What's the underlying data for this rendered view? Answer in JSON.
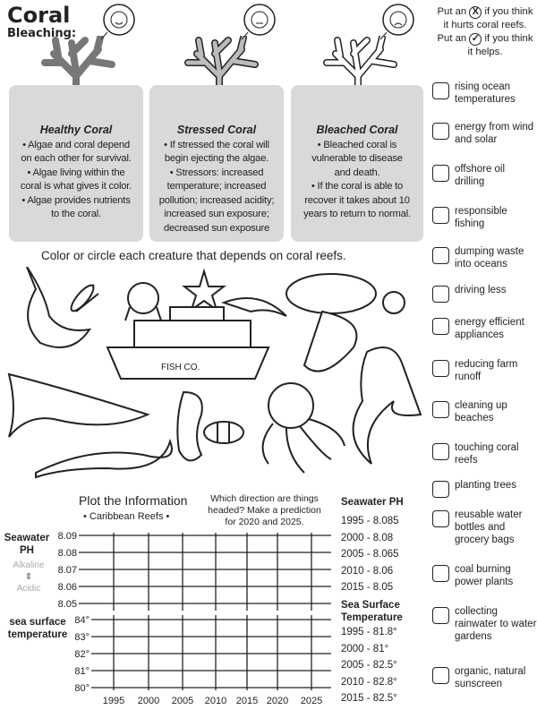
{
  "title": {
    "line1": "Coral",
    "line2": "Bleaching:"
  },
  "coral_cards": [
    {
      "heading": "Healthy Coral",
      "lines": [
        "• Algae and coral depend",
        "on each other for survival.",
        "• Algae living within the",
        "coral is what gives it color.",
        "• Algae provides nutrients",
        "to the coral."
      ]
    },
    {
      "heading": "Stressed Coral",
      "lines": [
        "• If stressed the coral will",
        "begin ejecting the algae.",
        "• Stressors: increased",
        "temperature; increased",
        "pollution; increased acidity;",
        "increased sun exposure;",
        "decreased sun exposure"
      ]
    },
    {
      "heading": "Bleached Coral",
      "lines": [
        "• Bleached coral is",
        "vulnerable to disease",
        "and death.",
        "• If the coral is able to",
        "recover it takes about 10",
        "years to return to normal."
      ]
    }
  ],
  "creatures": {
    "instruction": "Color or circle each creature that depends on coral reefs.",
    "boat_label": "FISH CO."
  },
  "checklist": {
    "intro_a": "Put an",
    "x_mark": "X",
    "intro_b": "if you think it hurts coral reefs. Put an",
    "check_mark": "✓",
    "intro_c": "if you think it helps.",
    "items": [
      "rising ocean temperatures",
      "energy from wind and solar",
      "offshore oil drilling",
      "responsible fishing",
      "dumping waste into oceans",
      "driving less",
      "energy efficient appliances",
      "reducing farm runoff",
      "cleaning up beaches",
      "touching coral reefs",
      "planting trees",
      "reusable water bottles and grocery bags",
      "coal burning power plants",
      "collecting rainwater to water gardens",
      "organic, natural sunscreen"
    ]
  },
  "plot": {
    "title": "Plot the Information",
    "subtitle": "• Caribbean Reefs •",
    "prompt": "Which direction are things headed? Make a prediction for 2020 and 2025.",
    "ph_label_1": "Seawater",
    "ph_label_2": "PH",
    "alkaline": "Alkaline",
    "acidic": "Acidic",
    "temp_label_1": "sea surface",
    "temp_label_2": "temperature",
    "ph_ticks": [
      "8.09",
      "8.08",
      "8.07",
      "8.06",
      "8.05"
    ],
    "temp_ticks": [
      "84°",
      "83°",
      "82°",
      "81°",
      "80°"
    ],
    "years": [
      "1995",
      "2000",
      "2005",
      "2010",
      "2015",
      "2020",
      "2025"
    ],
    "ph_data_title": "Seawater PH",
    "ph_data": [
      "1995 - 8.085",
      "2000 - 8.08",
      "2005 - 8.065",
      "2010 - 8.06",
      "2015 - 8.05"
    ],
    "temp_data_title_1": "Sea Surface",
    "temp_data_title_2": "Temperature",
    "temp_data": [
      "1995 - 81.8°",
      "2000 - 81°",
      "2005 - 82.5°",
      "2010 - 82.8°",
      "2015 - 82.5°"
    ]
  }
}
